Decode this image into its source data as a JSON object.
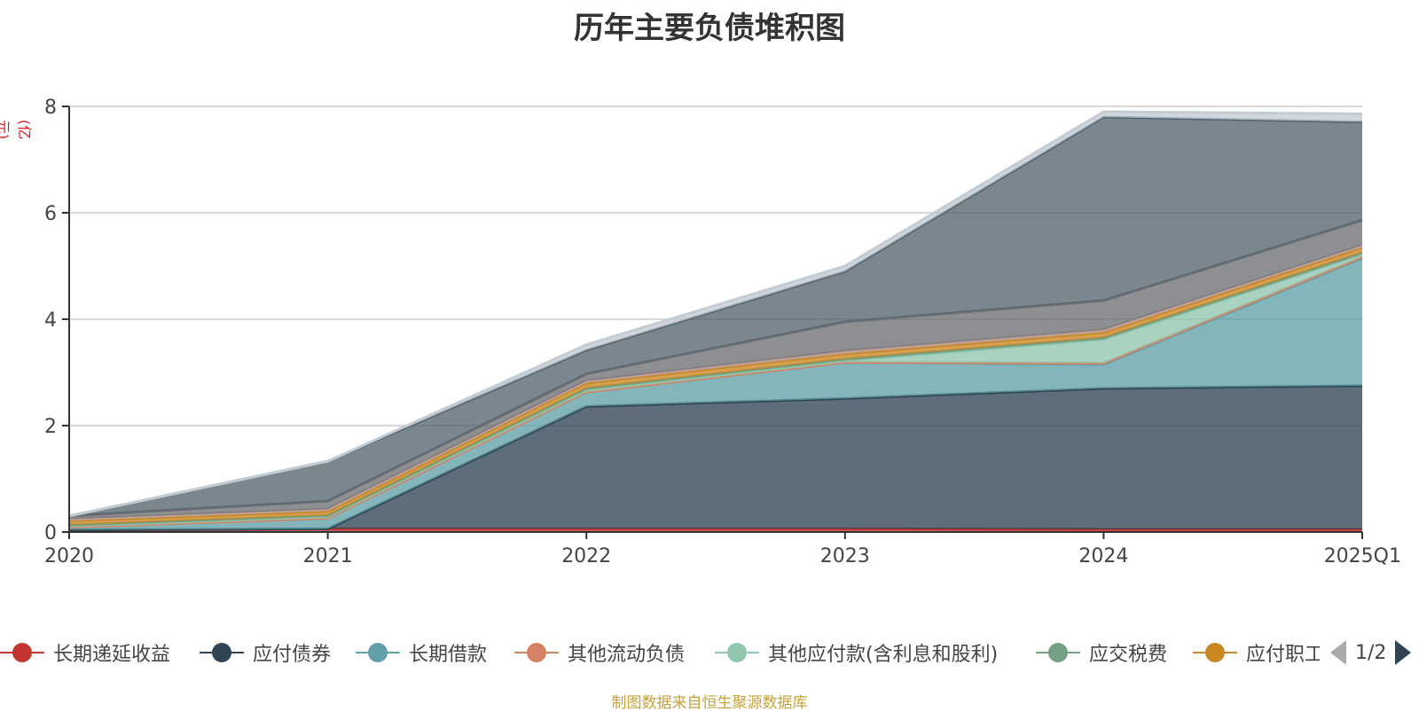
{
  "chart_data": {
    "type": "area",
    "stacked": true,
    "title": "历年主要负债堆积图",
    "unit_label": "(亿元)",
    "xlabel": "",
    "ylabel": "",
    "categories": [
      "2020",
      "2021",
      "2022",
      "2023",
      "2024",
      "2025Q1"
    ],
    "ylim": [
      0,
      8
    ],
    "yticks": [
      0,
      2,
      4,
      6,
      8
    ],
    "grid": true,
    "series": [
      {
        "name": "长期递延收益",
        "color": "#c23531",
        "values": [
          0.04,
          0.06,
          0.06,
          0.06,
          0.05,
          0.05
        ]
      },
      {
        "name": "应付债券",
        "color": "#2f4554",
        "values": [
          0.0,
          0.0,
          2.3,
          2.45,
          2.65,
          2.7
        ]
      },
      {
        "name": "长期借款",
        "color": "#61a0a8",
        "values": [
          0.05,
          0.2,
          0.27,
          0.68,
          0.45,
          2.4
        ]
      },
      {
        "name": "其他流动负债",
        "color": "#d48265",
        "values": [
          0.0,
          0.0,
          0.0,
          0.0,
          0.02,
          0.02
        ]
      },
      {
        "name": "其他应付款(含利息和股利)",
        "color": "#91c7ae",
        "values": [
          0.02,
          0.03,
          0.04,
          0.03,
          0.45,
          0.05
        ]
      },
      {
        "name": "应交税费",
        "color": "#749f83",
        "values": [
          0.02,
          0.02,
          0.03,
          0.03,
          0.03,
          0.03
        ]
      },
      {
        "name": "应付职工薪酬",
        "color": "#ca8622",
        "values": [
          0.08,
          0.08,
          0.1,
          0.1,
          0.1,
          0.1
        ]
      },
      {
        "name": "",
        "color": "#bda29a",
        "values": [
          0.03,
          0.04,
          0.04,
          0.05,
          0.05,
          0.04
        ]
      },
      {
        "name": "",
        "color": "#6e7074",
        "values": [
          0.06,
          0.15,
          0.13,
          0.55,
          0.55,
          0.47
        ]
      },
      {
        "name": "",
        "color": "#546570",
        "values": [
          0.0,
          0.75,
          0.45,
          0.95,
          3.45,
          1.85
        ]
      },
      {
        "name": "",
        "color": "#c4ccd3",
        "values": [
          0.0,
          0.0,
          0.1,
          0.1,
          0.1,
          0.15
        ]
      }
    ],
    "legend": {
      "placement": "bottom",
      "visible_count": 7,
      "page": "1/2"
    }
  },
  "source_note": "制图数据来自恒生聚源数据库"
}
